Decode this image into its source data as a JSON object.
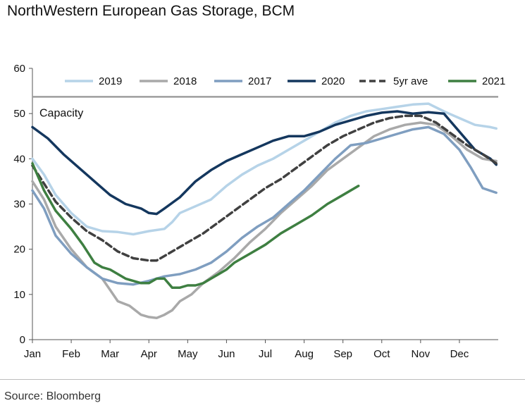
{
  "title": "NorthWestern European Gas Storage, BCM",
  "source": "Source: Bloomberg",
  "chart_data": {
    "type": "line",
    "title": "NorthWestern European Gas Storage, BCM",
    "xlabel": "",
    "ylabel": "",
    "x_ticks": [
      "Jan",
      "Feb",
      "Mar",
      "Apr",
      "May",
      "Jun",
      "Jul",
      "Aug",
      "Sep",
      "Oct",
      "Nov",
      "Dec"
    ],
    "xlim": [
      0,
      12
    ],
    "ylim": [
      0,
      60
    ],
    "y_ticks": [
      0,
      10,
      20,
      30,
      40,
      50,
      60
    ],
    "grid": false,
    "legend": "top",
    "capacity": {
      "label": "Capacity",
      "value": 53.7,
      "color": "#9e9e9e"
    },
    "series": [
      {
        "name": "2019",
        "color": "#b6d3e8",
        "dash": false,
        "points": [
          [
            0,
            40
          ],
          [
            0.3,
            36.5
          ],
          [
            0.6,
            32
          ],
          [
            1.0,
            28
          ],
          [
            1.4,
            25
          ],
          [
            1.8,
            24
          ],
          [
            2.2,
            23.8
          ],
          [
            2.6,
            23.3
          ],
          [
            3.0,
            24
          ],
          [
            3.4,
            24.5
          ],
          [
            3.6,
            26
          ],
          [
            3.8,
            28
          ],
          [
            4.2,
            29.5
          ],
          [
            4.6,
            31
          ],
          [
            5.0,
            34
          ],
          [
            5.4,
            36.5
          ],
          [
            5.8,
            38.5
          ],
          [
            6.2,
            40
          ],
          [
            6.6,
            42
          ],
          [
            7.0,
            44
          ],
          [
            7.4,
            46
          ],
          [
            7.8,
            48
          ],
          [
            8.2,
            49.5
          ],
          [
            8.6,
            50.5
          ],
          [
            9.0,
            51
          ],
          [
            9.4,
            51.5
          ],
          [
            9.8,
            52
          ],
          [
            10.2,
            52.2
          ],
          [
            10.6,
            50.5
          ],
          [
            11.0,
            49
          ],
          [
            11.4,
            47.5
          ],
          [
            11.8,
            47
          ],
          [
            11.95,
            46.7
          ]
        ]
      },
      {
        "name": "2018",
        "color": "#a9a9a9",
        "dash": false,
        "points": [
          [
            0,
            35
          ],
          [
            0.3,
            31
          ],
          [
            0.6,
            25
          ],
          [
            1.0,
            20
          ],
          [
            1.4,
            16
          ],
          [
            1.8,
            13.5
          ],
          [
            2.0,
            11
          ],
          [
            2.2,
            8.5
          ],
          [
            2.5,
            7.5
          ],
          [
            2.8,
            5.5
          ],
          [
            3.0,
            5
          ],
          [
            3.2,
            4.8
          ],
          [
            3.4,
            5.5
          ],
          [
            3.6,
            6.5
          ],
          [
            3.8,
            8.5
          ],
          [
            4.1,
            10
          ],
          [
            4.4,
            12.5
          ],
          [
            4.8,
            15
          ],
          [
            5.2,
            18
          ],
          [
            5.6,
            21.5
          ],
          [
            6.0,
            24.5
          ],
          [
            6.4,
            28
          ],
          [
            6.8,
            31
          ],
          [
            7.2,
            34
          ],
          [
            7.6,
            37.5
          ],
          [
            8.0,
            40
          ],
          [
            8.4,
            42.5
          ],
          [
            8.8,
            45
          ],
          [
            9.2,
            46.5
          ],
          [
            9.6,
            47.5
          ],
          [
            10.0,
            48
          ],
          [
            10.4,
            47.5
          ],
          [
            10.8,
            45
          ],
          [
            11.2,
            42
          ],
          [
            11.6,
            40
          ],
          [
            11.95,
            39.5
          ]
        ]
      },
      {
        "name": "2017",
        "color": "#7f9ec0",
        "dash": false,
        "points": [
          [
            0,
            33
          ],
          [
            0.3,
            29
          ],
          [
            0.6,
            23
          ],
          [
            1.0,
            19
          ],
          [
            1.4,
            16
          ],
          [
            1.8,
            13.5
          ],
          [
            2.2,
            12.5
          ],
          [
            2.6,
            12.2
          ],
          [
            3.0,
            13
          ],
          [
            3.4,
            14
          ],
          [
            3.8,
            14.5
          ],
          [
            4.2,
            15.5
          ],
          [
            4.6,
            17
          ],
          [
            5.0,
            19.5
          ],
          [
            5.4,
            22.5
          ],
          [
            5.8,
            25
          ],
          [
            6.2,
            27
          ],
          [
            6.6,
            30
          ],
          [
            7.0,
            33
          ],
          [
            7.4,
            36.5
          ],
          [
            7.8,
            40
          ],
          [
            8.2,
            43
          ],
          [
            8.6,
            43.5
          ],
          [
            9.0,
            44.5
          ],
          [
            9.4,
            45.5
          ],
          [
            9.8,
            46.5
          ],
          [
            10.2,
            47
          ],
          [
            10.6,
            45.5
          ],
          [
            11.0,
            42
          ],
          [
            11.3,
            38
          ],
          [
            11.6,
            33.5
          ],
          [
            11.95,
            32.5
          ]
        ]
      },
      {
        "name": "2020",
        "color": "#14375e",
        "dash": false,
        "points": [
          [
            0,
            47
          ],
          [
            0.4,
            44.5
          ],
          [
            0.8,
            41
          ],
          [
            1.2,
            38
          ],
          [
            1.6,
            35
          ],
          [
            2.0,
            32
          ],
          [
            2.4,
            30
          ],
          [
            2.8,
            29
          ],
          [
            3.0,
            28
          ],
          [
            3.2,
            27.8
          ],
          [
            3.4,
            29
          ],
          [
            3.8,
            31.5
          ],
          [
            4.2,
            35
          ],
          [
            4.6,
            37.5
          ],
          [
            5.0,
            39.5
          ],
          [
            5.4,
            41
          ],
          [
            5.8,
            42.5
          ],
          [
            6.2,
            44
          ],
          [
            6.6,
            45
          ],
          [
            7.0,
            45
          ],
          [
            7.4,
            46
          ],
          [
            7.8,
            47.5
          ],
          [
            8.2,
            48.5
          ],
          [
            8.6,
            49.5
          ],
          [
            9.0,
            50.2
          ],
          [
            9.4,
            50.5
          ],
          [
            9.8,
            50
          ],
          [
            10.2,
            50.3
          ],
          [
            10.6,
            50
          ],
          [
            11.0,
            46
          ],
          [
            11.4,
            42
          ],
          [
            11.8,
            40
          ],
          [
            11.95,
            38.7
          ]
        ]
      },
      {
        "name": "5yr ave",
        "color": "#404040",
        "dash": true,
        "points": [
          [
            0,
            38.5
          ],
          [
            0.3,
            34.5
          ],
          [
            0.6,
            30.5
          ],
          [
            1.0,
            27
          ],
          [
            1.4,
            24
          ],
          [
            1.8,
            22
          ],
          [
            2.2,
            19.5
          ],
          [
            2.6,
            18
          ],
          [
            3.0,
            17.5
          ],
          [
            3.2,
            17.5
          ],
          [
            3.6,
            19.5
          ],
          [
            4.0,
            21.5
          ],
          [
            4.4,
            23.5
          ],
          [
            4.8,
            26
          ],
          [
            5.2,
            28.5
          ],
          [
            5.6,
            31
          ],
          [
            6.0,
            33.5
          ],
          [
            6.4,
            35.5
          ],
          [
            6.8,
            38
          ],
          [
            7.2,
            40.5
          ],
          [
            7.6,
            43
          ],
          [
            8.0,
            45
          ],
          [
            8.4,
            46.5
          ],
          [
            8.8,
            48
          ],
          [
            9.2,
            49
          ],
          [
            9.6,
            49.5
          ],
          [
            10.0,
            49.5
          ],
          [
            10.4,
            48
          ],
          [
            10.8,
            45.5
          ],
          [
            11.2,
            43
          ],
          [
            11.6,
            41
          ],
          [
            11.95,
            39
          ]
        ]
      },
      {
        "name": "2021",
        "color": "#3e7f41",
        "dash": false,
        "points": [
          [
            0,
            39
          ],
          [
            0.3,
            33
          ],
          [
            0.6,
            28.5
          ],
          [
            1.0,
            24.5
          ],
          [
            1.3,
            21
          ],
          [
            1.6,
            17
          ],
          [
            1.8,
            16
          ],
          [
            2.0,
            15.5
          ],
          [
            2.4,
            13.5
          ],
          [
            2.8,
            12.5
          ],
          [
            3.0,
            12.5
          ],
          [
            3.2,
            13.5
          ],
          [
            3.4,
            13.5
          ],
          [
            3.6,
            11.5
          ],
          [
            3.8,
            11.5
          ],
          [
            4.0,
            12
          ],
          [
            4.2,
            12
          ],
          [
            4.4,
            12.5
          ],
          [
            4.6,
            13.5
          ],
          [
            4.8,
            14.5
          ],
          [
            5.0,
            15.5
          ],
          [
            5.2,
            17
          ],
          [
            5.6,
            19
          ],
          [
            6.0,
            21
          ],
          [
            6.4,
            23.5
          ],
          [
            6.8,
            25.5
          ],
          [
            7.2,
            27.5
          ],
          [
            7.6,
            30
          ],
          [
            8.0,
            32
          ],
          [
            8.4,
            34
          ]
        ]
      }
    ]
  }
}
